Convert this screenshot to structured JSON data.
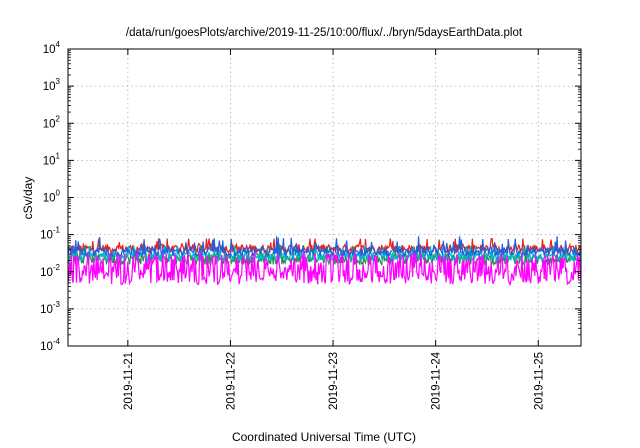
{
  "chart_data": {
    "type": "line",
    "title": "/data/run/goesPlots/archive/2019-11-25/10:00/flux/../bryn/5daysEarthData.plot",
    "xlabel": "Coordinated Universal Time (UTC)",
    "ylabel": "cSv/day",
    "yscale": "log",
    "ylim": [
      0.0001,
      10000
    ],
    "y_ticks": [
      {
        "base": "10",
        "exp": "-4",
        "value": 0.0001
      },
      {
        "base": "10",
        "exp": "-3",
        "value": 0.001
      },
      {
        "base": "10",
        "exp": "-2",
        "value": 0.01
      },
      {
        "base": "10",
        "exp": "-1",
        "value": 0.1
      },
      {
        "base": "10",
        "exp": "0",
        "value": 1
      },
      {
        "base": "10",
        "exp": "1",
        "value": 10
      },
      {
        "base": "10",
        "exp": "2",
        "value": 100
      },
      {
        "base": "10",
        "exp": "3",
        "value": 1000
      },
      {
        "base": "10",
        "exp": "4",
        "value": 10000
      }
    ],
    "xlim": [
      "2019-11-20 10:00",
      "2019-11-25 10:00"
    ],
    "x_ticks": [
      "2019-11-21",
      "2019-11-22",
      "2019-11-23",
      "2019-11-24",
      "2019-11-25"
    ],
    "grid": true,
    "series": [
      {
        "color": "#e8211a",
        "baseline": 0.042,
        "spread": 0.12,
        "spike_max": 0.078
      },
      {
        "color": "#2e8b57",
        "baseline": 0.022,
        "spread": 0.15,
        "spike_max": 0.05
      },
      {
        "color": "#00b8c8",
        "baseline": 0.026,
        "spread": 0.12,
        "spike_max": 0.05
      },
      {
        "color": "#1f5fe0",
        "baseline": 0.035,
        "spread": 0.12,
        "spike_max": 0.09
      },
      {
        "color": "#ff00ff",
        "baseline": 0.0075,
        "spread": 0.22,
        "spike_max": 0.04
      }
    ]
  }
}
